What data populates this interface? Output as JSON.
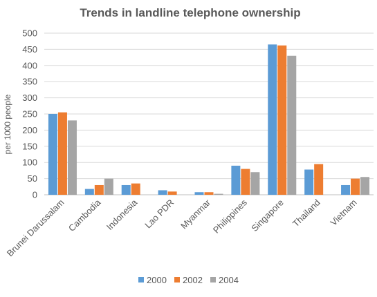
{
  "chart_data": {
    "type": "bar",
    "title": "Trends in landline telephone ownership",
    "xlabel": "",
    "ylabel": "per 1000 people",
    "ylim": [
      0,
      500
    ],
    "yticks": [
      0,
      50,
      100,
      150,
      200,
      250,
      300,
      350,
      400,
      450,
      500
    ],
    "grid": true,
    "legend_position": "bottom",
    "categories": [
      "Brunei Darussalam",
      "Cambodia",
      "Indonesia",
      "Lao PDR",
      "Myanmar",
      "Philippines",
      "Singapore",
      "Thailand",
      "Vietnam"
    ],
    "series": [
      {
        "name": "2000",
        "color": "#5b9bd5",
        "values": [
          250,
          18,
          30,
          14,
          8,
          90,
          465,
          78,
          30
        ]
      },
      {
        "name": "2002",
        "color": "#ed7d31",
        "values": [
          255,
          30,
          35,
          10,
          8,
          80,
          462,
          95,
          50
        ]
      },
      {
        "name": "2004",
        "color": "#a5a5a5",
        "values": [
          230,
          50,
          null,
          null,
          3,
          70,
          430,
          null,
          55
        ]
      }
    ]
  }
}
